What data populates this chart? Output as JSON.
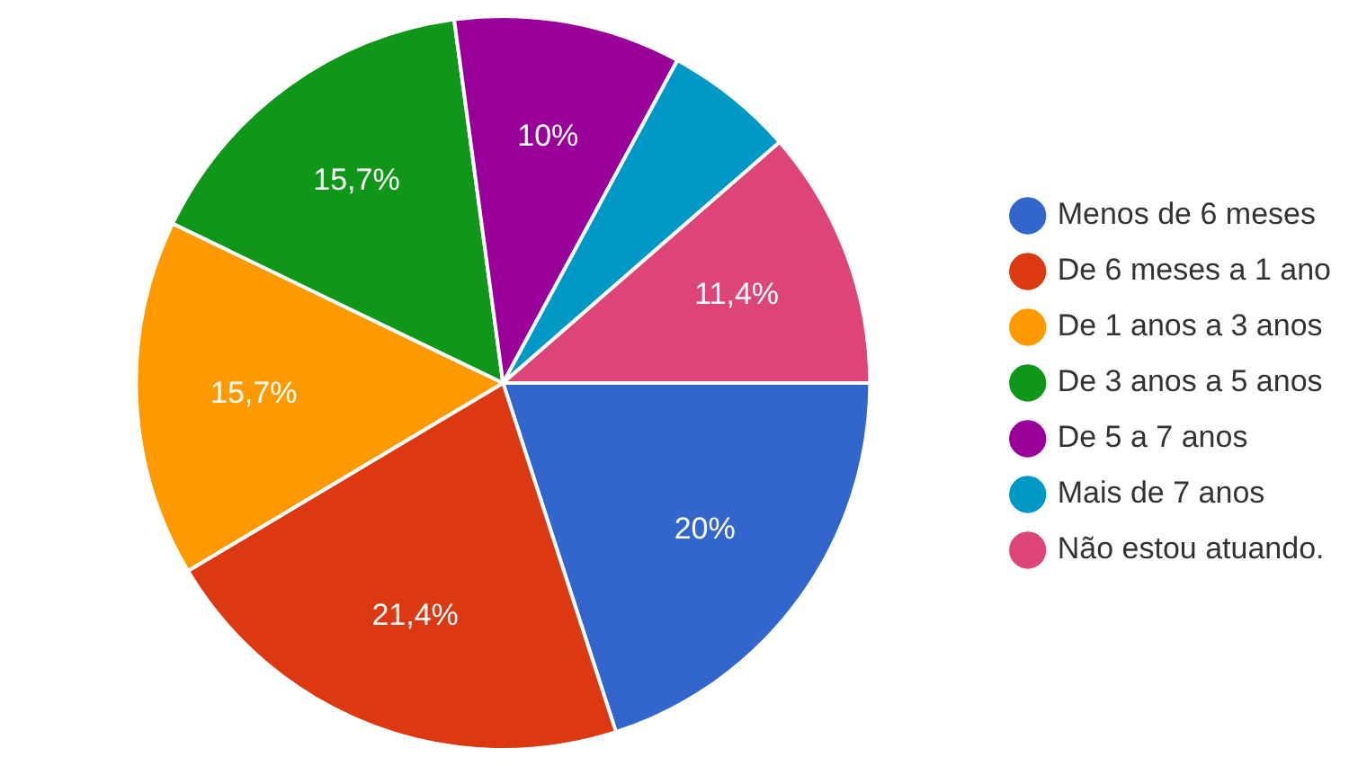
{
  "chart_data": {
    "type": "pie",
    "categories": [
      "Menos de 6 meses",
      "De 6 meses a 1 ano",
      "De 1 anos a 3 anos",
      "De 3 anos a 5 anos",
      "De 5 a 7 anos",
      "Mais de 7 anos",
      "Não estou atuando."
    ],
    "values": [
      20,
      21.4,
      15.7,
      15.7,
      10,
      5.7,
      11.4
    ],
    "value_labels": [
      "20%",
      "21,4%",
      "15,7%",
      "15,7%",
      "10%",
      null,
      "11,4%"
    ],
    "colors": [
      "#3366cc",
      "#dc3912",
      "#ff9900",
      "#109618",
      "#990099",
      "#0099c6",
      "#dd4477"
    ],
    "legend": "right"
  }
}
